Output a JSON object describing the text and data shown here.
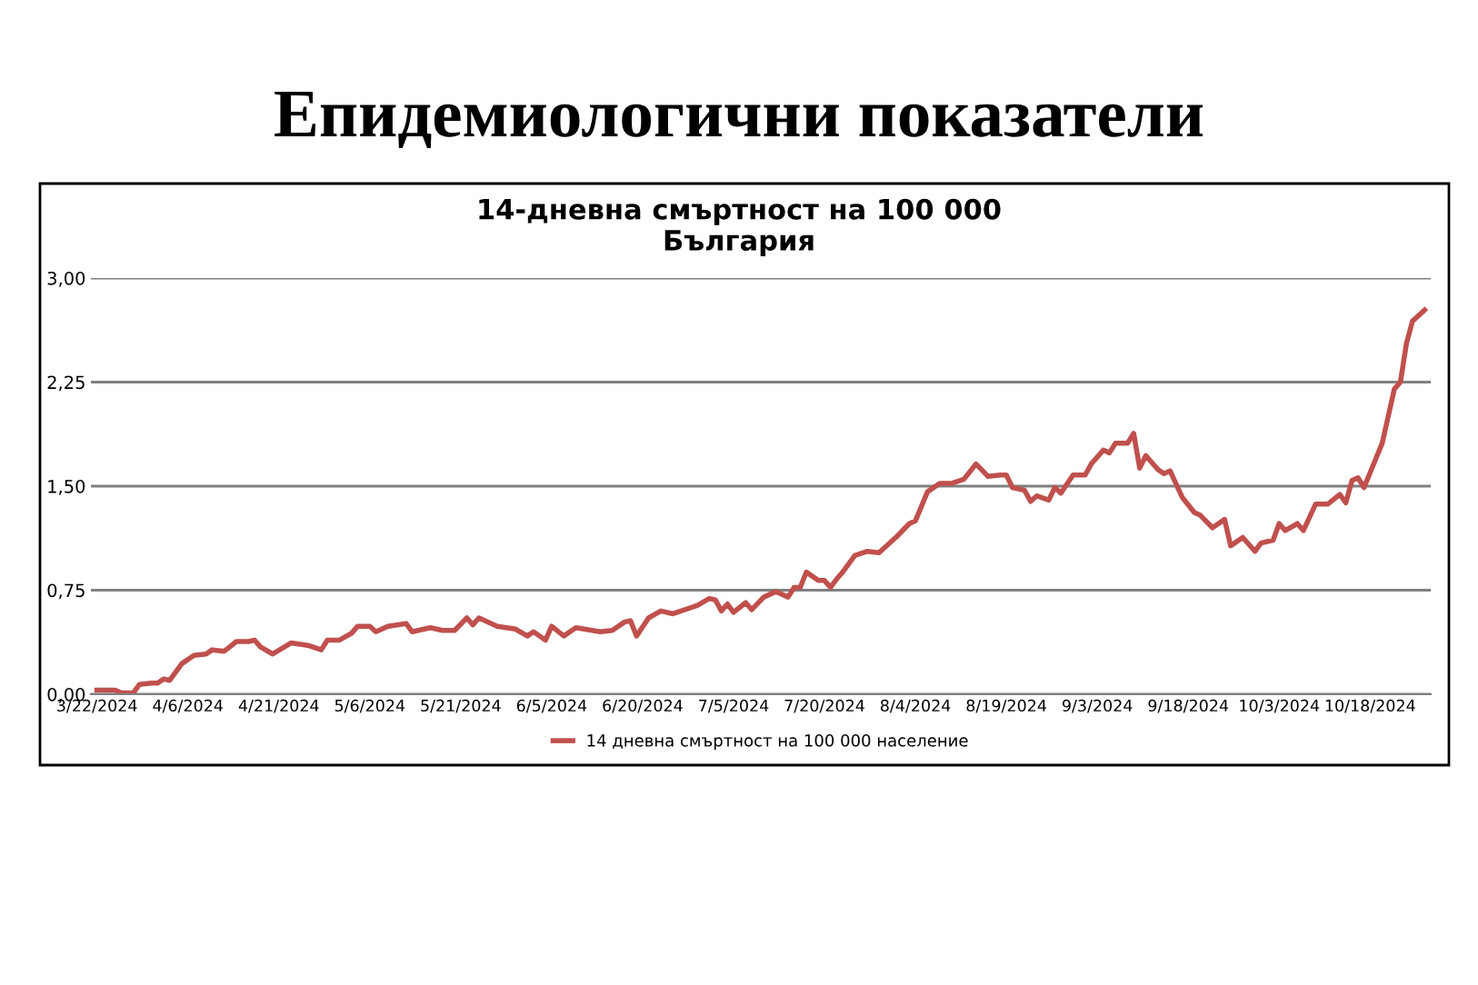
{
  "chart_data": {
    "type": "line",
    "title": "Епидемиологични показатели",
    "subtitle": "14-дневна смъртност на 100 000\nБългария",
    "x": [
      "2024-03-22",
      "2024-03-25",
      "2024-03-26",
      "2024-03-28",
      "2024-03-29",
      "2024-03-31",
      "2024-04-01",
      "2024-04-02",
      "2024-04-03",
      "2024-04-05",
      "2024-04-07",
      "2024-04-09",
      "2024-04-10",
      "2024-04-12",
      "2024-04-14",
      "2024-04-16",
      "2024-04-17",
      "2024-04-18",
      "2024-04-20",
      "2024-04-23",
      "2024-04-26",
      "2024-04-28",
      "2024-04-29",
      "2024-05-01",
      "2024-05-03",
      "2024-05-04",
      "2024-05-06",
      "2024-05-07",
      "2024-05-09",
      "2024-05-12",
      "2024-05-13",
      "2024-05-16",
      "2024-05-18",
      "2024-05-20",
      "2024-05-22",
      "2024-05-23",
      "2024-05-24",
      "2024-05-27",
      "2024-05-30",
      "2024-06-01",
      "2024-06-02",
      "2024-06-04",
      "2024-06-05",
      "2024-06-07",
      "2024-06-09",
      "2024-06-13",
      "2024-06-15",
      "2024-06-17",
      "2024-06-18",
      "2024-06-19",
      "2024-06-21",
      "2024-06-23",
      "2024-06-25",
      "2024-06-27",
      "2024-06-29",
      "2024-07-01",
      "2024-07-02",
      "2024-07-03",
      "2024-07-04",
      "2024-07-05",
      "2024-07-07",
      "2024-07-08",
      "2024-07-10",
      "2024-07-12",
      "2024-07-14",
      "2024-07-15",
      "2024-07-16",
      "2024-07-17",
      "2024-07-19",
      "2024-07-20",
      "2024-07-21",
      "2024-07-22",
      "2024-07-23",
      "2024-07-25",
      "2024-07-27",
      "2024-07-29",
      "2024-08-01",
      "2024-08-03",
      "2024-08-04",
      "2024-08-06",
      "2024-08-08",
      "2024-08-10",
      "2024-08-12",
      "2024-08-14",
      "2024-08-16",
      "2024-08-18",
      "2024-08-19",
      "2024-08-20",
      "2024-08-22",
      "2024-08-23",
      "2024-08-24",
      "2024-08-26",
      "2024-08-27",
      "2024-08-28",
      "2024-08-30",
      "2024-09-01",
      "2024-09-02",
      "2024-09-04",
      "2024-09-05",
      "2024-09-06",
      "2024-09-08",
      "2024-09-09",
      "2024-09-10",
      "2024-09-11",
      "2024-09-13",
      "2024-09-14",
      "2024-09-15",
      "2024-09-17",
      "2024-09-19",
      "2024-09-20",
      "2024-09-22",
      "2024-09-24",
      "2024-09-25",
      "2024-09-27",
      "2024-09-29",
      "2024-09-30",
      "2024-10-02",
      "2024-10-03",
      "2024-10-04",
      "2024-10-06",
      "2024-10-07",
      "2024-10-09",
      "2024-10-11",
      "2024-10-13",
      "2024-10-14",
      "2024-10-15",
      "2024-10-16",
      "2024-10-17",
      "2024-10-20",
      "2024-10-22",
      "2024-10-23",
      "2024-10-24",
      "2024-10-25",
      "2024-10-27"
    ],
    "series": [
      {
        "name": "14 дневна смъртност на 100 000 население",
        "color": "#c0504d",
        "values": [
          0.03,
          0.03,
          0.01,
          0.01,
          0.07,
          0.08,
          0.08,
          0.11,
          0.1,
          0.22,
          0.28,
          0.29,
          0.32,
          0.31,
          0.38,
          0.38,
          0.39,
          0.34,
          0.29,
          0.37,
          0.35,
          0.32,
          0.39,
          0.39,
          0.44,
          0.49,
          0.49,
          0.45,
          0.49,
          0.51,
          0.45,
          0.48,
          0.46,
          0.46,
          0.55,
          0.5,
          0.55,
          0.49,
          0.47,
          0.42,
          0.45,
          0.39,
          0.49,
          0.42,
          0.48,
          0.45,
          0.46,
          0.52,
          0.53,
          0.42,
          0.55,
          0.6,
          0.58,
          0.61,
          0.64,
          0.69,
          0.68,
          0.6,
          0.65,
          0.59,
          0.66,
          0.61,
          0.7,
          0.74,
          0.7,
          0.77,
          0.77,
          0.88,
          0.82,
          0.82,
          0.77,
          0.83,
          0.88,
          1.0,
          1.03,
          1.02,
          1.14,
          1.23,
          1.25,
          1.46,
          1.52,
          1.52,
          1.55,
          1.66,
          1.57,
          1.58,
          1.58,
          1.49,
          1.47,
          1.39,
          1.43,
          1.4,
          1.49,
          1.45,
          1.58,
          1.58,
          1.66,
          1.76,
          1.74,
          1.81,
          1.81,
          1.88,
          1.63,
          1.72,
          1.62,
          1.59,
          1.61,
          1.42,
          1.31,
          1.29,
          1.2,
          1.26,
          1.07,
          1.13,
          1.03,
          1.09,
          1.11,
          1.23,
          1.18,
          1.23,
          1.18,
          1.37,
          1.37,
          1.44,
          1.38,
          1.54,
          1.56,
          1.49,
          1.81,
          2.2,
          2.25,
          2.53,
          2.69,
          2.77
        ]
      }
    ],
    "xlim": [
      "2024-03-21",
      "2024-10-28"
    ],
    "xticks": [
      {
        "value": "2024-03-22",
        "label": "3/22/2024"
      },
      {
        "value": "2024-04-06",
        "label": "4/6/2024"
      },
      {
        "value": "2024-04-21",
        "label": "4/21/2024"
      },
      {
        "value": "2024-05-06",
        "label": "5/6/2024"
      },
      {
        "value": "2024-05-21",
        "label": "5/21/2024"
      },
      {
        "value": "2024-06-05",
        "label": "6/5/2024"
      },
      {
        "value": "2024-06-20",
        "label": "6/20/2024"
      },
      {
        "value": "2024-07-05",
        "label": "7/5/2024"
      },
      {
        "value": "2024-07-20",
        "label": "7/20/2024"
      },
      {
        "value": "2024-08-04",
        "label": "8/4/2024"
      },
      {
        "value": "2024-08-19",
        "label": "8/19/2024"
      },
      {
        "value": "2024-09-03",
        "label": "9/3/2024"
      },
      {
        "value": "2024-09-18",
        "label": "9/18/2024"
      },
      {
        "value": "2024-10-03",
        "label": "10/3/2024"
      },
      {
        "value": "2024-10-18",
        "label": "10/18/2024"
      }
    ],
    "ylim": [
      0,
      3
    ],
    "yticks": [
      {
        "value": 0,
        "label": "0,00"
      },
      {
        "value": 0.75,
        "label": "0,75"
      },
      {
        "value": 1.5,
        "label": "1,50"
      },
      {
        "value": 2.25,
        "label": "2,25"
      },
      {
        "value": 3,
        "label": "3,00"
      }
    ],
    "grid": "y",
    "legend": "bottom",
    "marker": "none",
    "line_style": "solid"
  }
}
